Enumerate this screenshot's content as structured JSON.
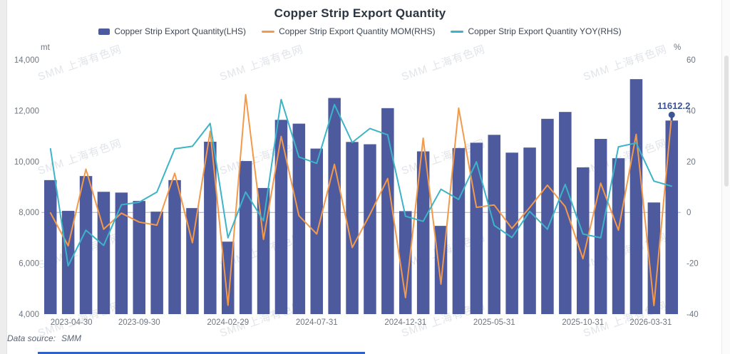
{
  "header": {
    "title": "Copper Strip Export Quantity"
  },
  "legend": [
    {
      "label": "Copper Strip Export Quantity(LHS)",
      "type": "bar",
      "color": "#4d5a9e"
    },
    {
      "label": "Copper Strip Export Quantity MOM(RHS)",
      "type": "line",
      "color": "#f4994a"
    },
    {
      "label": "Copper Strip Export Quantity YOY(RHS)",
      "type": "line",
      "color": "#3cb4c8"
    }
  ],
  "axes": {
    "left_unit": "mt",
    "right_unit": "%",
    "left_ticks": [
      "14,000",
      "12,000",
      "10,000",
      "8,000",
      "6,000",
      "4,000"
    ],
    "left_tick_values": [
      14000,
      12000,
      10000,
      8000,
      6000,
      4000
    ],
    "right_ticks": [
      "60",
      "40",
      "20",
      "0",
      "-20",
      "-40"
    ],
    "right_tick_values": [
      60,
      40,
      20,
      0,
      -20,
      -40
    ],
    "x_labels": [
      {
        "index": 0,
        "label": "2023-04-30"
      },
      {
        "index": 5,
        "label": "2023-09-30"
      },
      {
        "index": 10,
        "label": "2024-02-29"
      },
      {
        "index": 15,
        "label": "2024-07-31"
      },
      {
        "index": 20,
        "label": "2024-12-31"
      },
      {
        "index": 25,
        "label": "2025-05-31"
      },
      {
        "index": 30,
        "label": "2025-10-31"
      },
      {
        "index": 35,
        "label": "2026-03-31"
      }
    ]
  },
  "chart_data": {
    "type": "bar",
    "title": "Copper Strip Export Quantity",
    "ylim_left": [
      4000,
      14000
    ],
    "ylim_right": [
      -40,
      60
    ],
    "grid": false,
    "legend_position": "top",
    "zero_line_color": "#a9aeb4",
    "categories": [
      "2023-04-30",
      "2023-05-31",
      "2023-06-30",
      "2023-07-31",
      "2023-08-31",
      "2023-09-30",
      "2023-10-31",
      "2023-11-30",
      "2023-12-31",
      "2024-01-31",
      "2024-02-29",
      "2024-03-31",
      "2024-04-30",
      "2024-05-31",
      "2024-06-30",
      "2024-07-31",
      "2024-08-31",
      "2024-09-30",
      "2024-10-31",
      "2024-11-30",
      "2024-12-31",
      "2025-01-31",
      "2025-02-28",
      "2025-03-31",
      "2025-04-30",
      "2025-05-31",
      "2025-06-30",
      "2025-07-31",
      "2025-08-31",
      "2025-09-30",
      "2025-10-31",
      "2025-11-30",
      "2025-12-31",
      "2026-01-31",
      "2026-02-28",
      "2026-03-31"
    ],
    "series": [
      {
        "name": "Copper Strip Export Quantity(LHS)",
        "type": "bar",
        "axis": "left",
        "color": "#4d5a9e",
        "values": [
          9270,
          8060,
          9430,
          8810,
          8780,
          8450,
          8030,
          9270,
          8170,
          10780,
          6850,
          10020,
          8960,
          11640,
          11490,
          10510,
          12500,
          10770,
          10680,
          12100,
          8050,
          10400,
          7470,
          10530,
          10740,
          11050,
          10350,
          10550,
          11680,
          11950,
          9770,
          10890,
          10130,
          13240,
          8390,
          11612.2
        ]
      },
      {
        "name": "Copper Strip Export Quantity MOM(RHS)",
        "type": "line",
        "axis": "right",
        "color": "#f4994a",
        "values": [
          -0.2,
          -13.1,
          17.0,
          -6.6,
          -0.3,
          -3.8,
          -5.0,
          15.4,
          -11.9,
          31.9,
          -36.5,
          46.3,
          -10.6,
          29.9,
          -1.3,
          -8.5,
          18.9,
          -13.8,
          -0.8,
          13.3,
          -33.5,
          29.2,
          -28.2,
          41.0,
          2.0,
          2.9,
          -6.3,
          1.9,
          10.7,
          2.3,
          -18.2,
          11.5,
          -7.0,
          30.7,
          -36.6,
          38.4
        ]
      },
      {
        "name": "Copper Strip Export Quantity YOY(RHS)",
        "type": "line",
        "axis": "right",
        "color": "#3cb4c8",
        "values": [
          25,
          -21,
          -7,
          -13,
          3,
          4,
          8,
          25,
          26,
          35,
          -10,
          8,
          -3.3,
          44.4,
          21.8,
          19.3,
          42.4,
          27.5,
          33.0,
          30.5,
          -1.5,
          -3.5,
          9.1,
          5.1,
          19.9,
          -5.1,
          -9.9,
          0.4,
          -6.6,
          11.0,
          -8.5,
          -10.0,
          25.8,
          27.3,
          12.3,
          10.3
        ]
      }
    ],
    "last_point_label": "11612.2",
    "last_point_label_color": "#3d5496"
  },
  "footer": {
    "data_source_label": "Data source:",
    "data_source_value": "SMM"
  },
  "watermark": {
    "text": "SMM 上海有色网"
  }
}
